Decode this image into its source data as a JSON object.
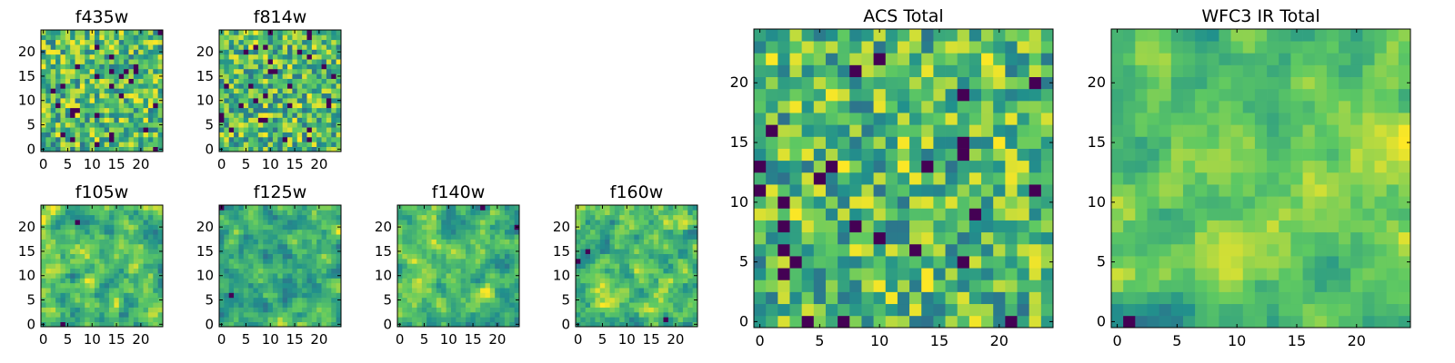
{
  "chart_data": [
    {
      "type": "heatmap",
      "title": "f435w",
      "xticks": [
        0,
        5,
        10,
        15,
        20
      ],
      "yticks": [
        0,
        5,
        10,
        15,
        20
      ],
      "xlim": [
        0,
        24
      ],
      "ylim": [
        0,
        24
      ],
      "grid": [
        25,
        25
      ],
      "smooth": 0,
      "seed": 11
    },
    {
      "type": "heatmap",
      "title": "f814w",
      "xticks": [
        0,
        5,
        10,
        15,
        20
      ],
      "yticks": [
        0,
        5,
        10,
        15,
        20
      ],
      "xlim": [
        0,
        24
      ],
      "ylim": [
        0,
        24
      ],
      "grid": [
        25,
        25
      ],
      "smooth": 0,
      "seed": 23
    },
    {
      "type": "heatmap",
      "title": "f105w",
      "xticks": [
        0,
        5,
        10,
        15,
        20
      ],
      "yticks": [
        0,
        5,
        10,
        15,
        20
      ],
      "xlim": [
        0,
        24
      ],
      "ylim": [
        0,
        24
      ],
      "grid": [
        25,
        25
      ],
      "smooth": 1,
      "seed": 37
    },
    {
      "type": "heatmap",
      "title": "f125w",
      "xticks": [
        0,
        5,
        10,
        15,
        20
      ],
      "yticks": [
        0,
        5,
        10,
        15,
        20
      ],
      "xlim": [
        0,
        24
      ],
      "ylim": [
        0,
        24
      ],
      "grid": [
        25,
        25
      ],
      "smooth": 1,
      "seed": 41
    },
    {
      "type": "heatmap",
      "title": "f140w",
      "xticks": [
        0,
        5,
        10,
        15,
        20
      ],
      "yticks": [
        0,
        5,
        10,
        15,
        20
      ],
      "xlim": [
        0,
        24
      ],
      "ylim": [
        0,
        24
      ],
      "grid": [
        25,
        25
      ],
      "smooth": 1,
      "seed": 53
    },
    {
      "type": "heatmap",
      "title": "f160w",
      "xticks": [
        0,
        5,
        10,
        15,
        20
      ],
      "yticks": [
        0,
        5,
        10,
        15,
        20
      ],
      "xlim": [
        0,
        24
      ],
      "ylim": [
        0,
        24
      ],
      "grid": [
        25,
        25
      ],
      "smooth": 1,
      "seed": 67
    },
    {
      "type": "heatmap",
      "title": "ACS Total",
      "xticks": [
        0,
        5,
        10,
        15,
        20
      ],
      "yticks": [
        0,
        5,
        10,
        15,
        20
      ],
      "xlim": [
        0,
        24
      ],
      "ylim": [
        0,
        24
      ],
      "grid": [
        25,
        25
      ],
      "smooth": 0,
      "seed": 79
    },
    {
      "type": "heatmap",
      "title": "WFC3 IR Total",
      "xticks": [
        0,
        5,
        10,
        15,
        20
      ],
      "yticks": [
        0,
        5,
        10,
        15,
        20
      ],
      "xlim": [
        0,
        24
      ],
      "ylim": [
        0,
        24
      ],
      "grid": [
        25,
        25
      ],
      "smooth": 2,
      "seed": 97
    }
  ],
  "colormap": [
    "#440154",
    "#3b528b",
    "#21918c",
    "#5ec962",
    "#fde725"
  ]
}
